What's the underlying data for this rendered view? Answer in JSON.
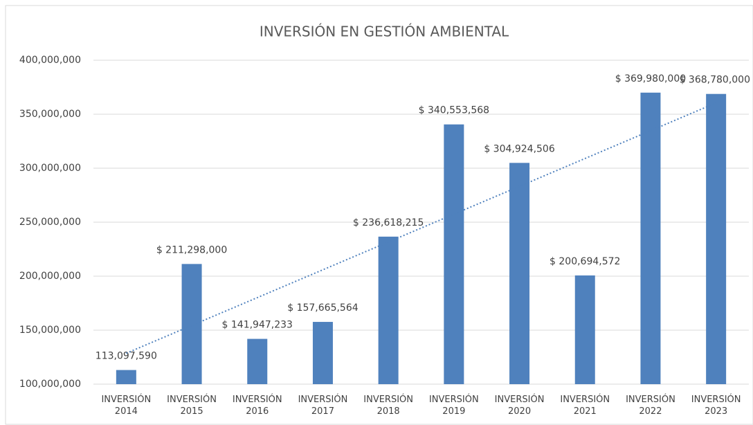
{
  "chart_data": {
    "type": "bar",
    "title": "INVERSIÓN EN GESTIÓN AMBIENTAL",
    "categories": [
      "INVERSIÓN 2014",
      "INVERSIÓN 2015",
      "INVERSIÓN 2016",
      "INVERSIÓN 2017",
      "INVERSIÓN 2018",
      "INVERSIÓN 2019",
      "INVERSIÓN 2020",
      "INVERSIÓN 2021",
      "INVERSIÓN 2022",
      "INVERSIÓN 2023"
    ],
    "values": [
      113097590,
      211298000,
      141947233,
      157665564,
      236618215,
      340553568,
      304924506,
      200694572,
      369980000,
      368780000
    ],
    "value_labels": [
      "113,097,590",
      "$ 211,298,000",
      "$ 141,947,233",
      "$ 157,665,564",
      "$ 236,618,215",
      "$ 340,553,568",
      "$ 304,924,506",
      "$ 200,694,572",
      "$ 369,980,000",
      "$ 368,780,000"
    ],
    "color": "#4f81bd",
    "ylim": [
      100000000,
      400000000
    ],
    "yticks": [
      {
        "value": 100000000,
        "label": "100,000,000"
      },
      {
        "value": 150000000,
        "label": "150,000,000"
      },
      {
        "value": 200000000,
        "label": "200,000,000"
      },
      {
        "value": 250000000,
        "label": "250,000,000"
      },
      {
        "value": 300000000,
        "label": "300,000,000"
      },
      {
        "value": 350000000,
        "label": "350,000,000"
      },
      {
        "value": 400000000,
        "label": "400,000,000"
      }
    ],
    "grid": true,
    "trendline": "linear"
  }
}
